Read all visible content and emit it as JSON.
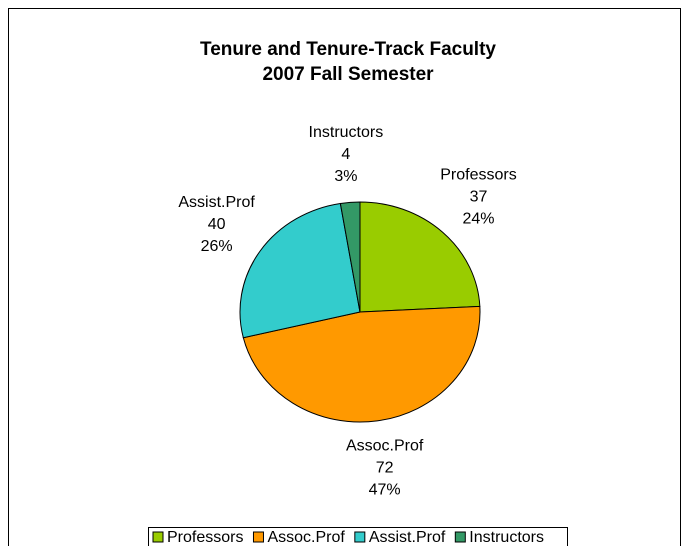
{
  "chart_data": {
    "type": "pie",
    "title": "Tenure and Tenure-Track Faculty",
    "subtitle": "2007 Fall Semester",
    "categories": [
      "Professors",
      "Assoc.Prof",
      "Assist.Prof",
      "Instructors"
    ],
    "values": [
      37,
      72,
      40,
      4
    ],
    "percent_labels": [
      "24%",
      "47%",
      "26%",
      "3%"
    ],
    "colors": [
      "#99cc00",
      "#ff9900",
      "#33cccc",
      "#339966"
    ],
    "legend": "bottom"
  }
}
